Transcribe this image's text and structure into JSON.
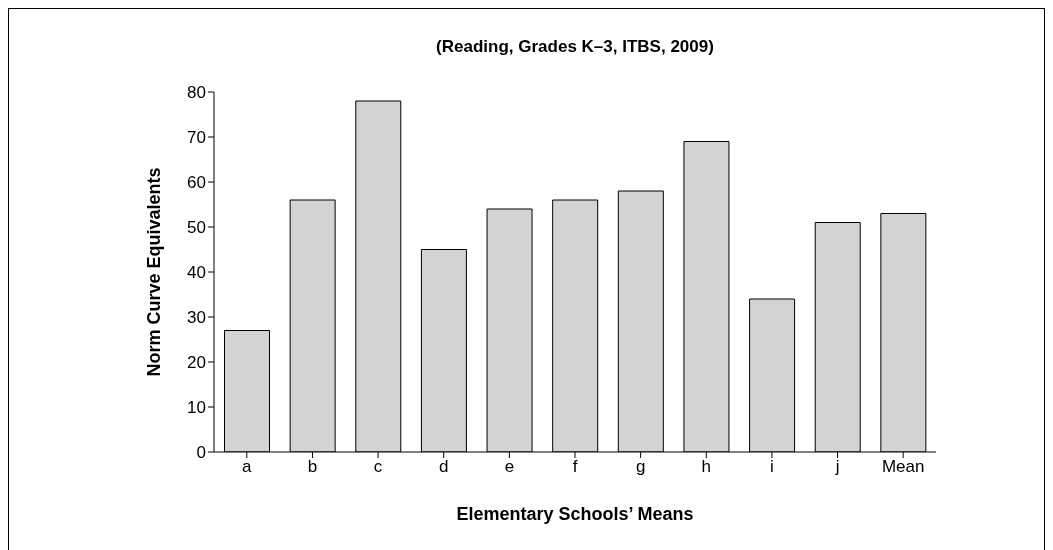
{
  "chart_data": {
    "type": "bar",
    "title": "(Reading, Grades K–3, ITBS, 2009)",
    "xlabel": "Elementary Schools’ Means",
    "ylabel": "Norm Curve Equivalents",
    "categories": [
      "a",
      "b",
      "c",
      "d",
      "e",
      "f",
      "g",
      "h",
      "i",
      "j",
      "Mean"
    ],
    "values": [
      27,
      56,
      78,
      45,
      54,
      56,
      58,
      69,
      34,
      51,
      53
    ],
    "color": "#d3d3d3",
    "ylim": [
      0,
      80
    ],
    "yticks": [
      0,
      10,
      20,
      30,
      40,
      50,
      60,
      70,
      80
    ],
    "grid": false,
    "legend": false
  }
}
